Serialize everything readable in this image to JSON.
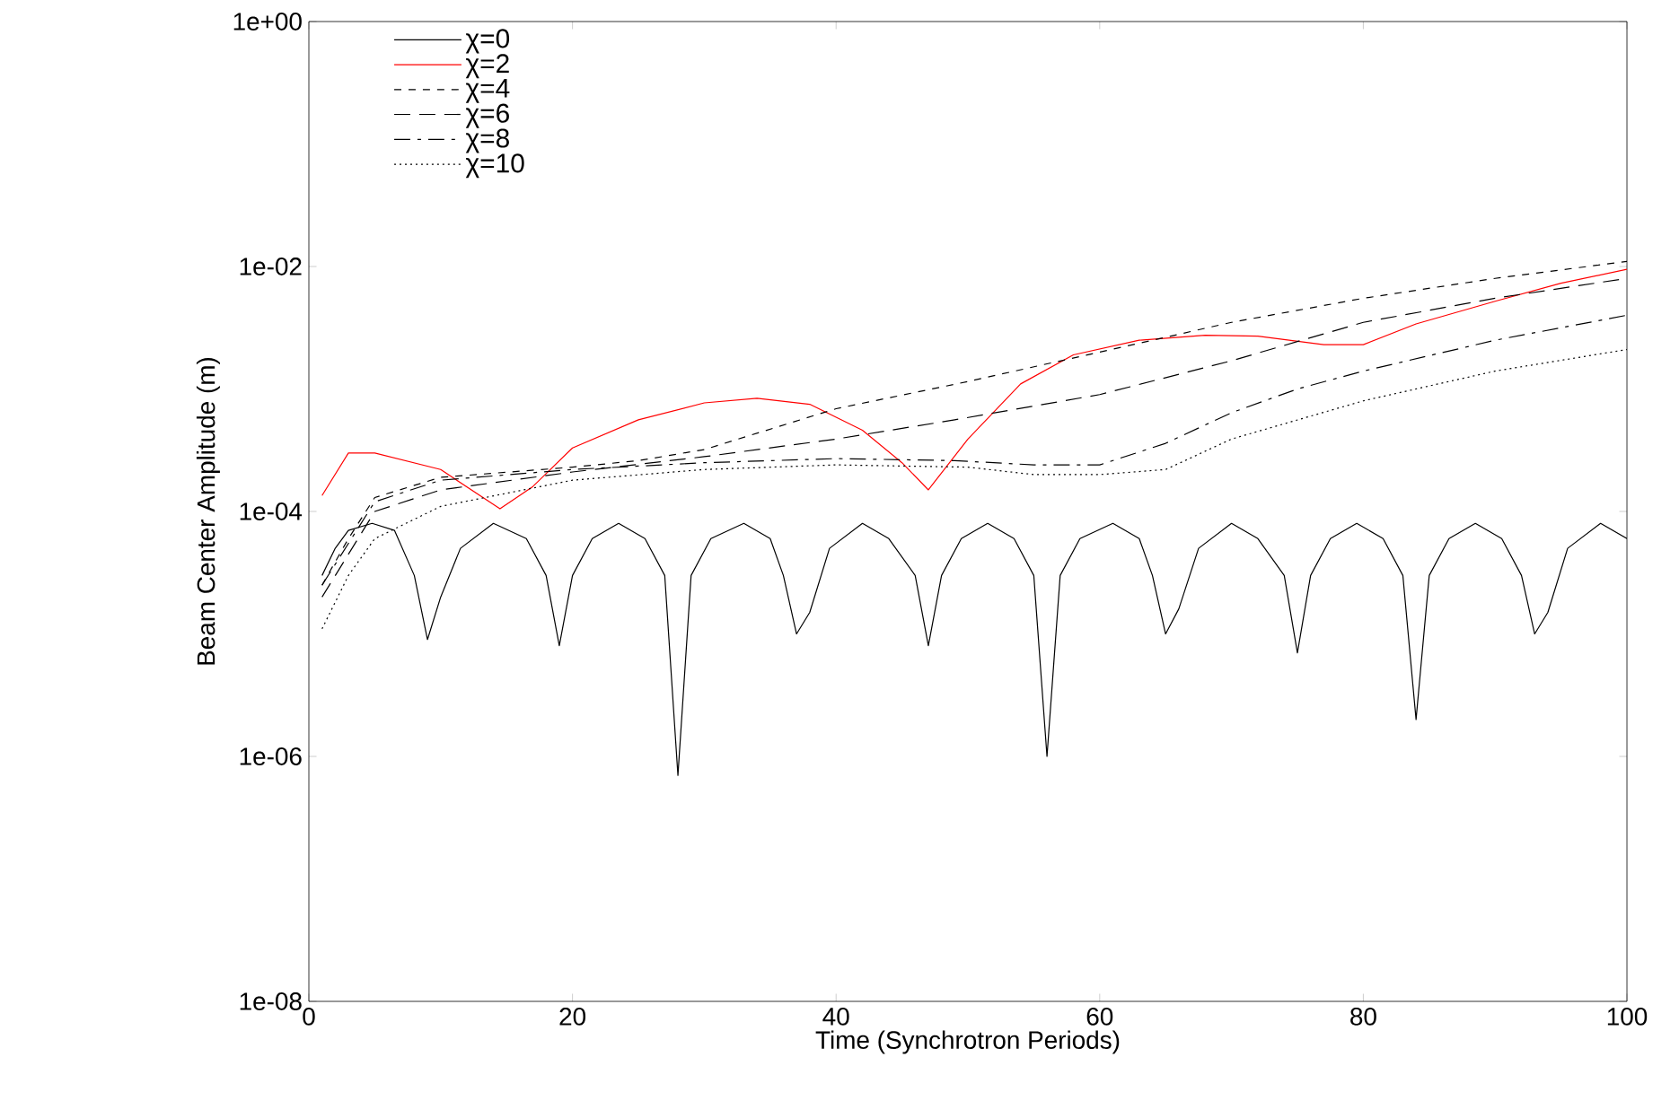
{
  "chart_data": {
    "type": "line",
    "xlabel": "Time (Synchrotron Periods)",
    "ylabel": "Beam Center Amplitude (m)",
    "log": "y",
    "xlim": [
      0,
      100
    ],
    "xticks": [
      0,
      20,
      40,
      60,
      80,
      100
    ],
    "ylim": [
      1e-08,
      1
    ],
    "yticks": [
      {
        "value": 1e-08,
        "label": "1e-08"
      },
      {
        "value": 1e-06,
        "label": "1e-06"
      },
      {
        "value": 0.0001,
        "label": "1e-04"
      },
      {
        "value": 0.01,
        "label": "1e-02"
      },
      {
        "value": 1,
        "label": "1e+00"
      }
    ],
    "legend": "top left",
    "grid": false,
    "series": [
      {
        "name": "χ=0",
        "color": "#000000",
        "line_style": "solid",
        "x": [
          1,
          2,
          3,
          4.8,
          6.5,
          8,
          9,
          10,
          11.5,
          14,
          16.5,
          18,
          19,
          20,
          21.5,
          23.5,
          25.5,
          27,
          28,
          29,
          30.5,
          33,
          35,
          36,
          37,
          38,
          39.5,
          42,
          44,
          46,
          47,
          48,
          49.5,
          51.5,
          53.5,
          55,
          56,
          57,
          58.5,
          61,
          63,
          64,
          65,
          66,
          67.5,
          70,
          72,
          74,
          75,
          76,
          77.5,
          79.5,
          81.5,
          83,
          84,
          85,
          86.5,
          88.5,
          90.5,
          92,
          93,
          94,
          95.5,
          98,
          100
        ],
        "values": [
          3e-05,
          5e-05,
          7e-05,
          8e-05,
          7e-05,
          3e-05,
          9e-06,
          2e-05,
          5e-05,
          8e-05,
          6e-05,
          3e-05,
          8e-06,
          3e-05,
          6e-05,
          8e-05,
          6e-05,
          3e-05,
          7e-07,
          3e-05,
          6e-05,
          8e-05,
          6e-05,
          3e-05,
          1e-05,
          1.5e-05,
          5e-05,
          8e-05,
          6e-05,
          3e-05,
          8e-06,
          3e-05,
          6e-05,
          8e-05,
          6e-05,
          3e-05,
          1e-06,
          3e-05,
          6e-05,
          8e-05,
          6e-05,
          3e-05,
          1e-05,
          1.6e-05,
          5e-05,
          8e-05,
          6e-05,
          3e-05,
          7e-06,
          3e-05,
          6e-05,
          8e-05,
          6e-05,
          3e-05,
          2e-06,
          3e-05,
          6e-05,
          8e-05,
          6e-05,
          3e-05,
          1e-05,
          1.5e-05,
          5e-05,
          8e-05,
          6e-05
        ]
      },
      {
        "name": "χ=2",
        "color": "#ff0000",
        "line_style": "solid",
        "x": [
          1,
          3,
          5,
          10,
          14.5,
          17,
          20,
          25,
          30,
          34,
          38,
          42,
          45,
          47,
          50,
          54,
          58,
          63,
          68,
          72,
          77,
          80,
          84,
          90,
          95,
          100
        ],
        "values": [
          0.000135,
          0.0003,
          0.0003,
          0.00022,
          0.000105,
          0.00016,
          0.00033,
          0.00056,
          0.00077,
          0.00084,
          0.00075,
          0.00046,
          0.00025,
          0.00015,
          0.00039,
          0.0011,
          0.0019,
          0.0025,
          0.00275,
          0.0027,
          0.0023,
          0.0023,
          0.0034,
          0.0052,
          0.0073,
          0.0095
        ]
      },
      {
        "name": "χ=4",
        "color": "#000000",
        "line_style": "dashed",
        "x": [
          1,
          3,
          5,
          10,
          20,
          25,
          30,
          40,
          50,
          60,
          70,
          80,
          90,
          100
        ],
        "values": [
          2.5e-05,
          6e-05,
          0.00013,
          0.00019,
          0.00023,
          0.00026,
          0.00032,
          0.00069,
          0.00115,
          0.002,
          0.0035,
          0.0055,
          0.008,
          0.011
        ]
      },
      {
        "name": "χ=6",
        "color": "#000000",
        "line_style": "long dashed",
        "x": [
          1,
          5,
          10,
          20,
          30,
          40,
          49,
          60,
          70,
          80,
          90,
          100
        ],
        "values": [
          2e-05,
          0.0001,
          0.00015,
          0.00021,
          0.00028,
          0.00039,
          0.00056,
          0.0009,
          0.0017,
          0.0035,
          0.0055,
          0.008
        ]
      },
      {
        "name": "χ=8",
        "color": "#000000",
        "line_style": "dash dot",
        "x": [
          1,
          5,
          10,
          20,
          30,
          40,
          49,
          55,
          60,
          65,
          70,
          75,
          80,
          90,
          100
        ],
        "values": [
          2.5e-05,
          0.00012,
          0.00018,
          0.00022,
          0.00025,
          0.00027,
          0.00026,
          0.00024,
          0.00024,
          0.00036,
          0.00064,
          0.001,
          0.0014,
          0.0025,
          0.004
        ]
      },
      {
        "name": "χ=10",
        "color": "#000000",
        "line_style": "dotted",
        "x": [
          1,
          3,
          5,
          10,
          20,
          30,
          40,
          50,
          55,
          60,
          65,
          70,
          80,
          90,
          100
        ],
        "values": [
          1.1e-05,
          3e-05,
          6e-05,
          0.00011,
          0.00018,
          0.00022,
          0.00024,
          0.00023,
          0.0002,
          0.0002,
          0.00022,
          0.00039,
          0.0008,
          0.0014,
          0.0021
        ]
      }
    ]
  }
}
